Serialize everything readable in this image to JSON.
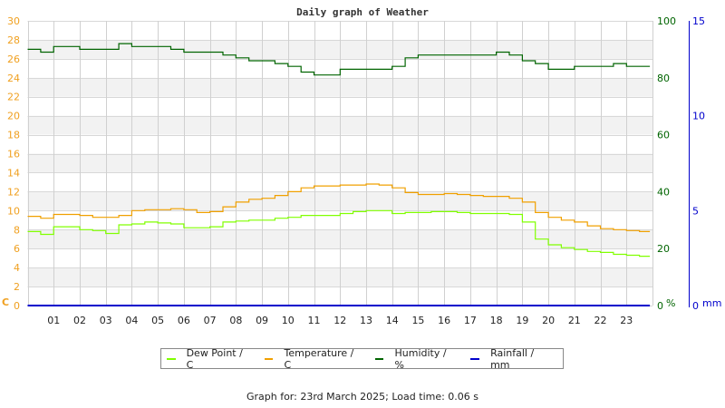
{
  "chart_data": {
    "type": "line",
    "title": "Daily graph of Weather",
    "xlabel": "",
    "x_ticks": [
      "01",
      "02",
      "03",
      "04",
      "05",
      "06",
      "07",
      "08",
      "09",
      "10",
      "11",
      "12",
      "13",
      "14",
      "15",
      "16",
      "17",
      "18",
      "19",
      "20",
      "21",
      "22",
      "23"
    ],
    "xlim": [
      0,
      24
    ],
    "grid": true,
    "axes": [
      {
        "id": "left",
        "label": "C",
        "range": [
          0,
          30
        ],
        "ticks": [
          0,
          2,
          4,
          6,
          8,
          10,
          12,
          14,
          16,
          18,
          20,
          22,
          24,
          26,
          28,
          30
        ],
        "color": "#f0a020"
      },
      {
        "id": "right1",
        "label": "%",
        "range": [
          0,
          100
        ],
        "ticks": [
          0,
          20,
          40,
          60,
          80,
          100
        ],
        "color": "#006400"
      },
      {
        "id": "right2",
        "label": "mm",
        "range": [
          0,
          15
        ],
        "ticks": [
          0,
          5,
          10,
          15
        ],
        "color": "#0000cc"
      }
    ],
    "x": [
      0,
      0.5,
      1,
      1.5,
      2,
      2.5,
      3,
      3.5,
      4,
      4.5,
      5,
      5.5,
      6,
      6.5,
      7,
      7.5,
      8,
      8.5,
      9,
      9.5,
      10,
      10.5,
      11,
      11.5,
      12,
      12.5,
      13,
      13.5,
      14,
      14.5,
      15,
      15.5,
      16,
      16.5,
      17,
      17.5,
      18,
      18.5,
      19,
      19.5,
      20,
      20.5,
      21,
      21.5,
      22,
      22.5,
      23,
      23.5,
      23.9
    ],
    "series": [
      {
        "name": "Dew Point / C",
        "axis": "left",
        "color": "#80ff00",
        "values": [
          7.8,
          7.5,
          8.3,
          8.3,
          8.0,
          7.9,
          7.6,
          8.5,
          8.6,
          8.8,
          8.7,
          8.6,
          8.2,
          8.2,
          8.3,
          8.8,
          8.9,
          9.0,
          9.0,
          9.2,
          9.3,
          9.5,
          9.5,
          9.5,
          9.7,
          9.9,
          10.0,
          10.0,
          9.7,
          9.8,
          9.8,
          9.9,
          9.9,
          9.8,
          9.7,
          9.7,
          9.7,
          9.6,
          8.8,
          7.0,
          6.4,
          6.1,
          5.9,
          5.7,
          5.6,
          5.4,
          5.3,
          5.2,
          5.2
        ]
      },
      {
        "name": "Temperature / C",
        "axis": "left",
        "color": "#f0a000",
        "values": [
          9.4,
          9.2,
          9.6,
          9.6,
          9.5,
          9.3,
          9.3,
          9.5,
          10.0,
          10.1,
          10.1,
          10.2,
          10.1,
          9.8,
          9.9,
          10.4,
          10.9,
          11.2,
          11.3,
          11.6,
          12.0,
          12.4,
          12.6,
          12.6,
          12.7,
          12.7,
          12.8,
          12.7,
          12.4,
          11.9,
          11.7,
          11.7,
          11.8,
          11.7,
          11.6,
          11.5,
          11.5,
          11.3,
          10.9,
          9.8,
          9.3,
          9.0,
          8.8,
          8.4,
          8.1,
          8.0,
          7.9,
          7.8,
          7.8
        ]
      },
      {
        "name": "Humidity / %",
        "axis": "right1",
        "color": "#006400",
        "values": [
          90,
          89,
          91,
          91,
          90,
          90,
          90,
          92,
          91,
          91,
          91,
          90,
          89,
          89,
          89,
          88,
          87,
          86,
          86,
          85,
          84,
          82,
          81,
          81,
          83,
          83,
          83,
          83,
          84,
          87,
          88,
          88,
          88,
          88,
          88,
          88,
          89,
          88,
          86,
          85,
          83,
          83,
          84,
          84,
          84,
          85,
          84,
          84,
          84
        ]
      },
      {
        "name": "Rainfall / mm",
        "axis": "right2",
        "color": "#0000cc",
        "values": [
          0,
          0,
          0,
          0,
          0,
          0,
          0,
          0,
          0,
          0,
          0,
          0,
          0,
          0,
          0,
          0,
          0,
          0,
          0,
          0,
          0,
          0,
          0,
          0,
          0,
          0,
          0,
          0,
          0,
          0,
          0,
          0,
          0,
          0,
          0,
          0,
          0,
          0,
          0,
          0,
          0,
          0,
          0,
          0,
          0,
          0,
          0,
          0,
          0
        ]
      }
    ],
    "legend_position": "bottom"
  },
  "legend": [
    {
      "label": "Dew Point / C",
      "color": "#80ff00"
    },
    {
      "label": "Temperature / C",
      "color": "#f0a000"
    },
    {
      "label": "Humidity / %",
      "color": "#006400"
    },
    {
      "label": "Rainfall / mm",
      "color": "#0000cc"
    }
  ],
  "footer": "Graph for: 23rd March 2025; Load time: 0.06 s"
}
